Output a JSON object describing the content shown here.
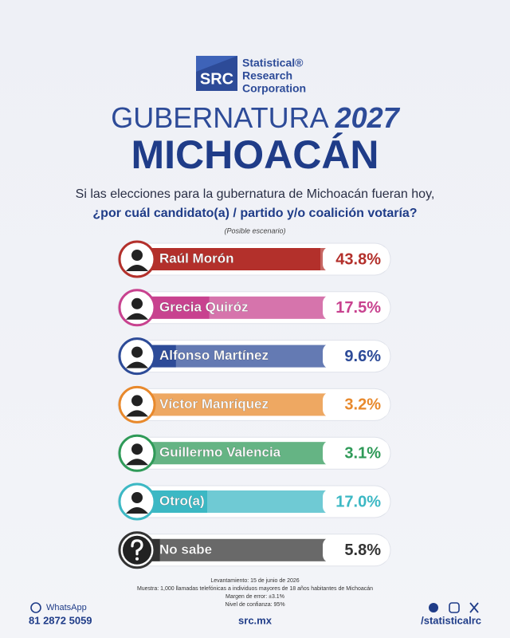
{
  "brand": {
    "abbr": "SRC",
    "name": [
      "Statistical®",
      "Research",
      "Corporation"
    ]
  },
  "chart_data": {
    "type": "bar",
    "title": "GUBERNATURA",
    "title_year": "2027",
    "subtitle": "MICHOACÁN",
    "question": [
      "Si las elecciones para la gubernatura de Michoacán fueran hoy,",
      "¿por cuál candidato(a) / partido y/o coalición votaría?"
    ],
    "note": "(Posible escenario)",
    "categories": [
      "Raúl Morón",
      "Grecia Quiróz",
      "Alfonso Martínez",
      "Víctor Manríquez",
      "Guillermo Valencia",
      "Otro(a)",
      "No sabe"
    ],
    "values": [
      43.8,
      17.5,
      9.6,
      3.2,
      3.1,
      17.0,
      5.8
    ],
    "value_labels": [
      "43.8%",
      "17.5%",
      "9.6%",
      "3.2%",
      "3.1%",
      "17.0%",
      "5.8%"
    ],
    "colors": [
      "#b3302b",
      "#c8428f",
      "#2d4b98",
      "#e8892c",
      "#2f9a58",
      "#3cb8c4",
      "#333333"
    ]
  },
  "footnotes": [
    "Levantamiento: 15 de junio de 2026",
    "Muestra: 1,000 llamadas telefónicas a individuos mayores de 18 años habitantes de Michoacán",
    "Margen de error: ±3.1%",
    "Nivel de confianza: 95%"
  ],
  "footer": {
    "whatsapp_label": "WhatsApp",
    "phone": "81 2872 5059",
    "site": "src.mx",
    "social": "/statisticalrc"
  }
}
